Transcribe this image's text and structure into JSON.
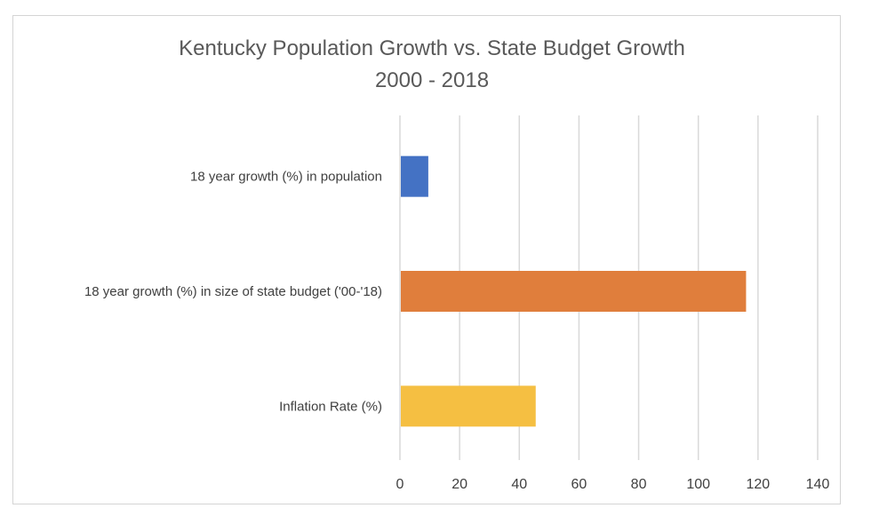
{
  "chart_data": {
    "type": "bar",
    "orientation": "horizontal",
    "title": "Kentucky Population Growth vs. State Budget Growth",
    "subtitle": "2000 - 2018",
    "xlabel": "",
    "ylabel": "",
    "categories": [
      "18 year growth (%) in population",
      "18 year growth (%) in size of state budget ('00-'18)",
      "Inflation Rate (%)"
    ],
    "values": [
      9.5,
      116,
      45.5
    ],
    "colors": [
      "#4472c4",
      "#e07e3c",
      "#f5bf42"
    ],
    "xlim": [
      0,
      140
    ],
    "xticks": [
      0,
      20,
      40,
      60,
      80,
      100,
      120,
      140
    ],
    "xtick_labels": [
      "0",
      "20",
      "40",
      "60",
      "80",
      "100",
      "120",
      "140"
    ],
    "grid": true,
    "legend": "none"
  }
}
